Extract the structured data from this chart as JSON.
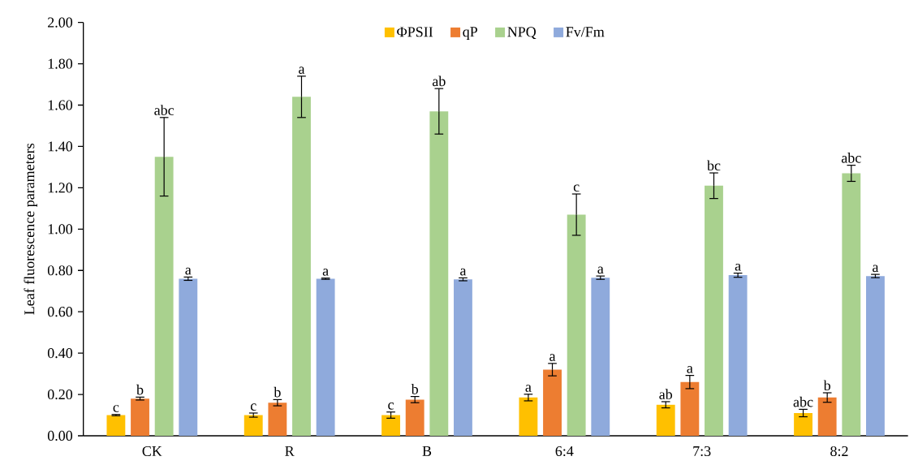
{
  "chart_data": {
    "type": "bar",
    "ylabel": "Leaf fluorescence parameters",
    "categories": [
      "CK",
      "R",
      "B",
      "6:4",
      "7:3",
      "8:2"
    ],
    "series": [
      {
        "name": "ΦPSII",
        "color": "#ffc000",
        "values": [
          0.1,
          0.1,
          0.1,
          0.185,
          0.15,
          0.11
        ],
        "errors": [
          0.003,
          0.01,
          0.015,
          0.016,
          0.015,
          0.018
        ]
      },
      {
        "name": "qP",
        "color": "#ed7d31",
        "values": [
          0.18,
          0.16,
          0.175,
          0.32,
          0.26,
          0.185
        ],
        "errors": [
          0.007,
          0.015,
          0.015,
          0.03,
          0.032,
          0.023
        ]
      },
      {
        "name": "NPQ",
        "color": "#a9d18e",
        "values": [
          1.35,
          1.64,
          1.57,
          1.07,
          1.21,
          1.27
        ],
        "errors": [
          0.19,
          0.1,
          0.11,
          0.1,
          0.062,
          0.039
        ]
      },
      {
        "name": "Fv/Fm",
        "color": "#8faadc",
        "values": [
          0.76,
          0.76,
          0.757,
          0.765,
          0.777,
          0.773
        ],
        "errors": [
          0.008,
          0.003,
          0.007,
          0.008,
          0.01,
          0.008
        ]
      }
    ],
    "ylim": [
      0,
      2
    ],
    "yticks": [
      {
        "value": 0,
        "label": "0.00"
      },
      {
        "value": 0.2,
        "label": "0.20"
      },
      {
        "value": 0.4,
        "label": "0.40"
      },
      {
        "value": 0.6,
        "label": "0.60"
      },
      {
        "value": 0.8,
        "label": "0.80"
      },
      {
        "value": 1.0,
        "label": "1.00"
      },
      {
        "value": 1.2,
        "label": "1.20"
      },
      {
        "value": 1.4,
        "label": "1.40"
      },
      {
        "value": 1.6,
        "label": "1.60"
      },
      {
        "value": 1.8,
        "label": "1.80"
      },
      {
        "value": 2.0,
        "label": "2.00"
      }
    ],
    "legend": "top",
    "grid": false,
    "annotations": [
      "c",
      "b",
      "abc",
      "a",
      "c",
      "b",
      "a",
      "a",
      "c",
      "b",
      "ab",
      "a",
      "a",
      "a",
      "c",
      "a",
      "ab",
      "a",
      "bc",
      "a",
      "abc",
      "b",
      "abc",
      "a"
    ]
  }
}
